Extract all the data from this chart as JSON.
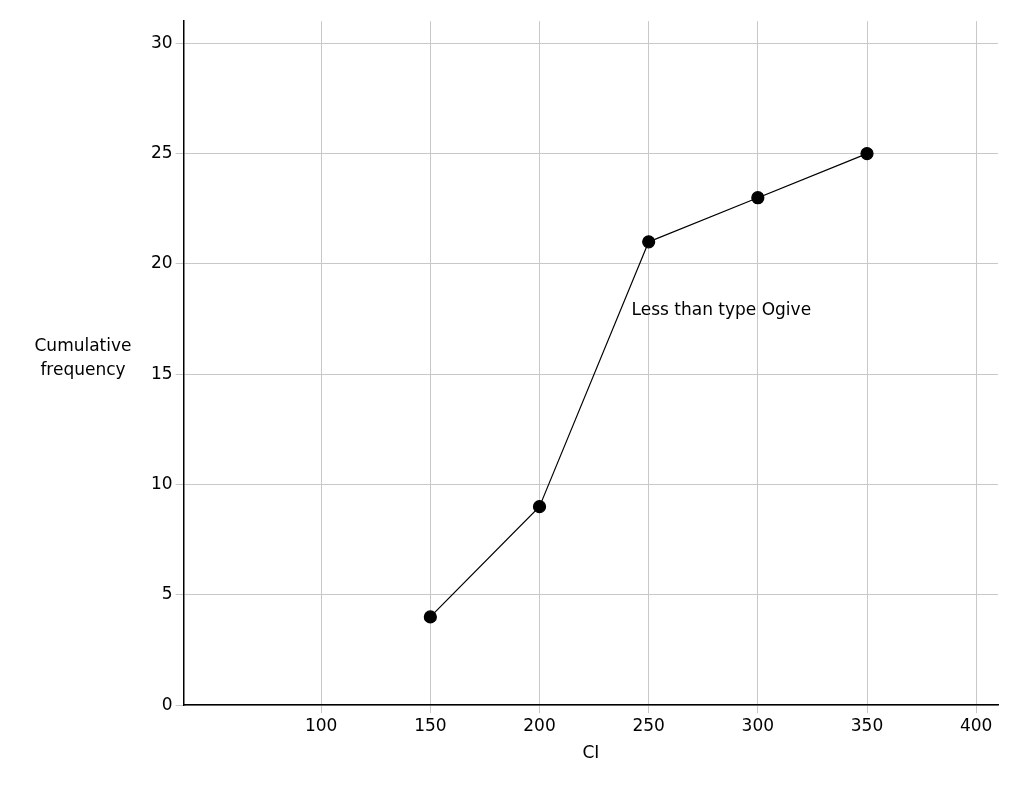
{
  "chart_data": {
    "type": "line",
    "xlabel": "CI",
    "ylabel": "Cumulative frequency",
    "annotations": [
      "Less than type Ogive"
    ],
    "x": [
      150,
      200,
      250,
      300,
      350
    ],
    "series": [
      {
        "color": "#000000",
        "values": [
          4,
          9,
          21,
          23,
          25
        ]
      }
    ],
    "xlim": [
      37,
      410
    ],
    "xticks": [
      100,
      150,
      200,
      250,
      300,
      350,
      400
    ],
    "ylim": [
      0,
      31
    ],
    "yticks": [
      0,
      5,
      10,
      15,
      20,
      25,
      30
    ],
    "grid": true,
    "marker": "circle",
    "line_style": "solid",
    "legend": false
  }
}
